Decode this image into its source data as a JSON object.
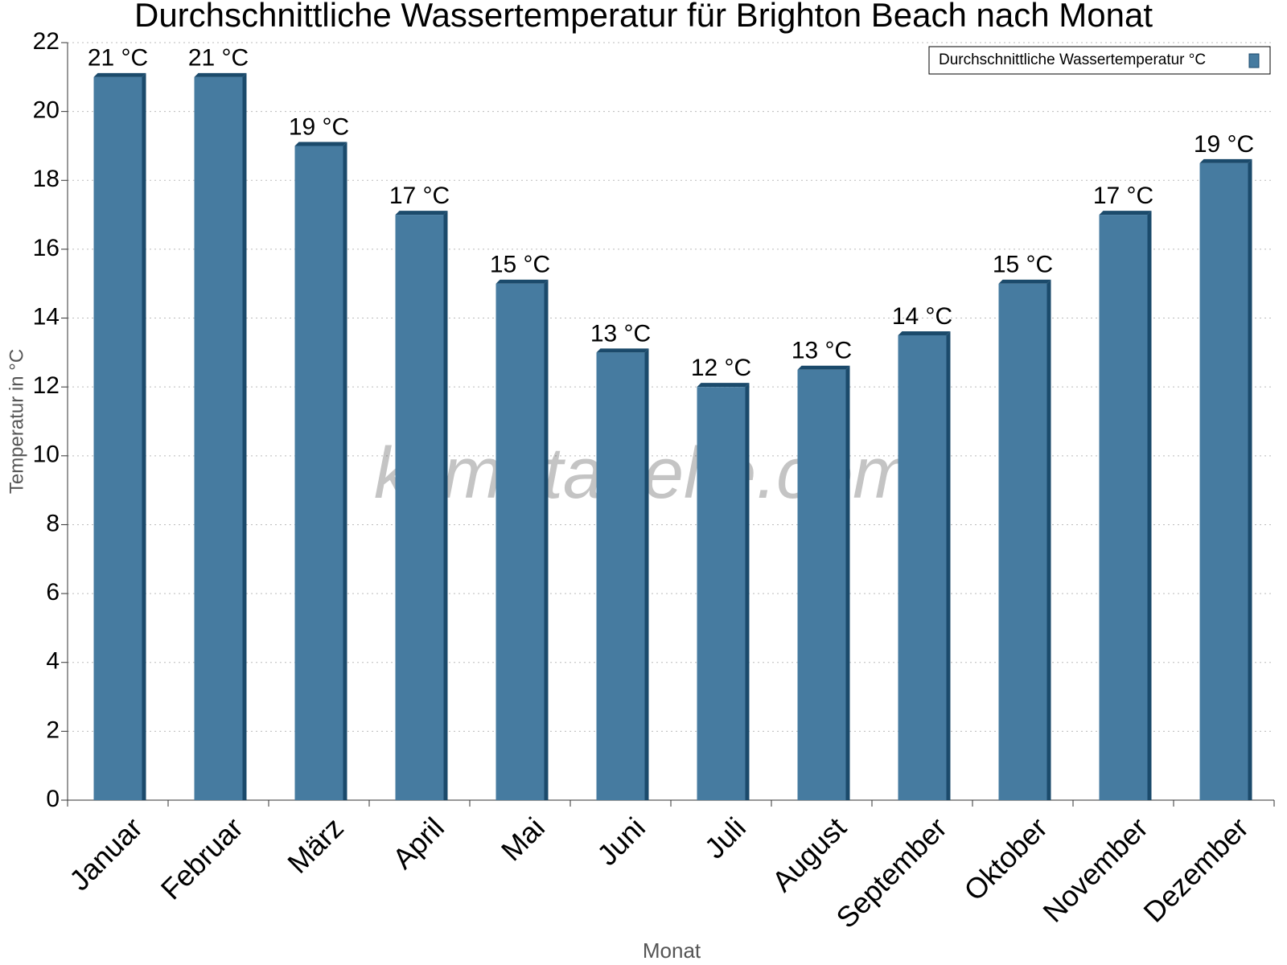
{
  "chart_data": {
    "type": "bar",
    "title": "Durchschnittliche Wassertemperatur für Brighton Beach nach Monat",
    "x_label": "Monat",
    "y_label": "Temperatur in °C",
    "watermark": "klimatabelle.com",
    "categories": [
      "Januar",
      "Februar",
      "März",
      "April",
      "Mai",
      "Juni",
      "Juli",
      "August",
      "September",
      "Oktober",
      "November",
      "Dezember"
    ],
    "series": [
      {
        "name": "Durchschnittliche Wassertemperatur °C",
        "color": "#467ba0",
        "values": [
          21,
          21,
          19,
          17,
          15,
          13,
          12,
          12.5,
          13.5,
          15,
          17,
          18.5
        ],
        "value_labels": [
          "21 °C",
          "21 °C",
          "19 °C",
          "17 °C",
          "15 °C",
          "13 °C",
          "12 °C",
          "13 °C",
          "14 °C",
          "15 °C",
          "17 °C",
          "19 °C"
        ]
      }
    ],
    "ylim": [
      0,
      22
    ],
    "yticks": [
      0,
      2,
      4,
      6,
      8,
      10,
      12,
      14,
      16,
      18,
      20,
      22
    ],
    "grid": true,
    "legend": "top-right"
  }
}
